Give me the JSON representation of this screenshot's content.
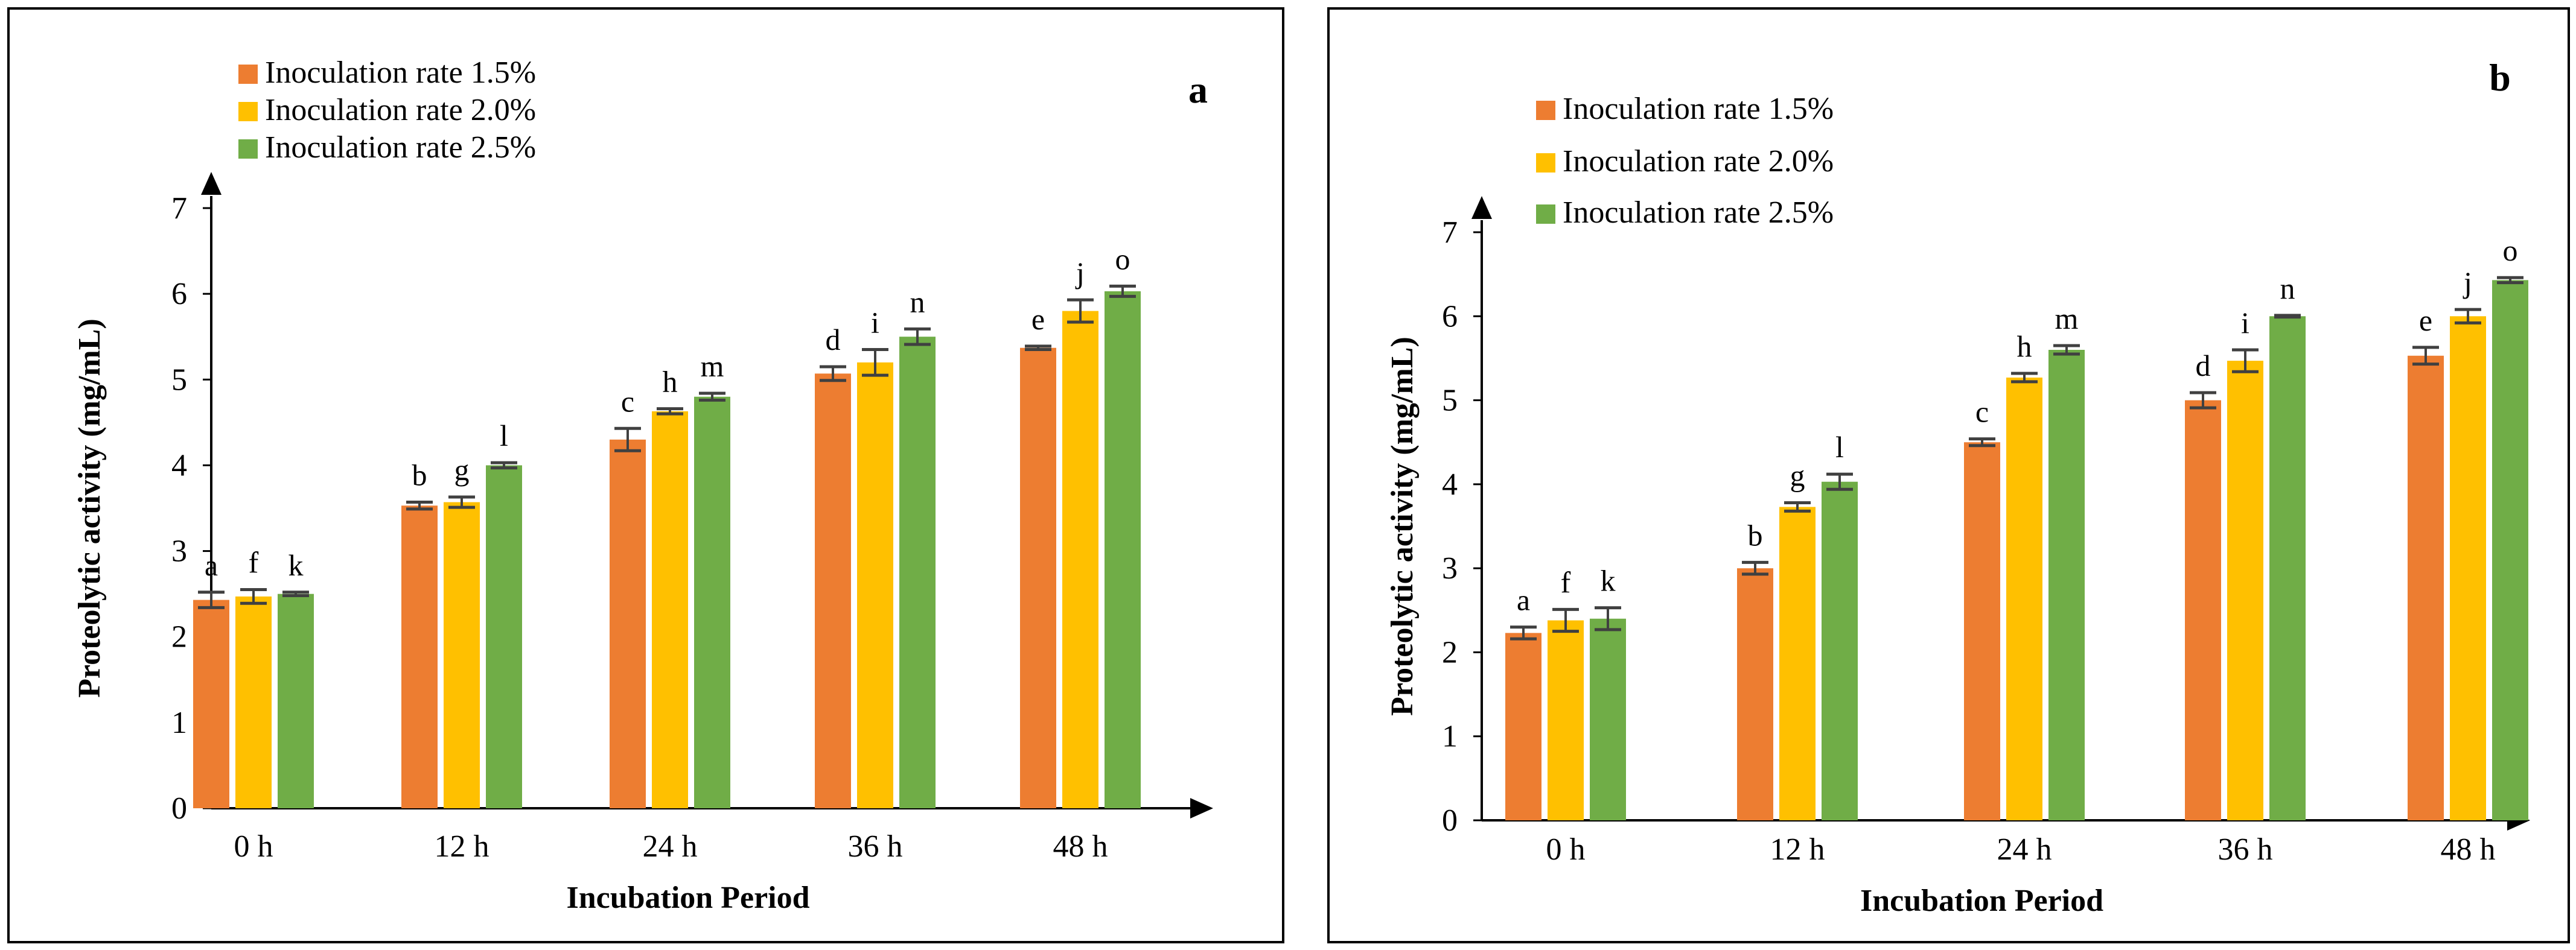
{
  "colors": {
    "series": [
      "#ED7D31",
      "#FFC000",
      "#70AD47"
    ],
    "errorbar": "#404040",
    "axis": "#000000",
    "border": "#000000"
  },
  "chart_data": [
    {
      "type": "bar",
      "panel_label": "a",
      "title": "",
      "xlabel": "Incubation Period",
      "ylabel": "Proteolytic activity (mg/mL)",
      "ylim": [
        0,
        7
      ],
      "yticks": [
        "0",
        "1",
        "2",
        "3",
        "4",
        "5",
        "6",
        "7"
      ],
      "grid": false,
      "legend_position": "top-left",
      "categories": [
        "0 h",
        "12 h",
        "24 h",
        "36 h",
        "48 h"
      ],
      "series": [
        {
          "name": "Inoculation rate 1.5%",
          "values": [
            2.43,
            3.53,
            4.3,
            5.07,
            5.37
          ],
          "errors": [
            0.09,
            0.04,
            0.13,
            0.08,
            0.02
          ],
          "letters": [
            "a",
            "b",
            "c",
            "d",
            "e"
          ]
        },
        {
          "name": "Inoculation rate 2.0%",
          "values": [
            2.47,
            3.57,
            4.63,
            5.2,
            5.8
          ],
          "errors": [
            0.08,
            0.06,
            0.03,
            0.15,
            0.13
          ],
          "letters": [
            "f",
            "g",
            "h",
            "i",
            "j"
          ]
        },
        {
          "name": "Inoculation rate 2.5%",
          "values": [
            2.5,
            4.0,
            4.8,
            5.5,
            6.03
          ],
          "errors": [
            0.02,
            0.03,
            0.04,
            0.09,
            0.06
          ],
          "letters": [
            "k",
            "l",
            "m",
            "n",
            "o"
          ]
        }
      ]
    },
    {
      "type": "bar",
      "panel_label": "b",
      "title": "",
      "xlabel": "Incubation Period",
      "ylabel": "Proteolytic activity (mg/mL)",
      "ylim": [
        0,
        7
      ],
      "yticks": [
        "0",
        "1",
        "2",
        "3",
        "4",
        "5",
        "6",
        "7"
      ],
      "grid": false,
      "legend_position": "top-left",
      "categories": [
        "0 h",
        "12 h",
        "24 h",
        "36 h",
        "48 h"
      ],
      "series": [
        {
          "name": "Inoculation rate 1.5%",
          "values": [
            2.23,
            3.0,
            4.5,
            5.0,
            5.53
          ],
          "errors": [
            0.07,
            0.07,
            0.04,
            0.09,
            0.1
          ],
          "letters": [
            "a",
            "b",
            "c",
            "d",
            "e"
          ]
        },
        {
          "name": "Inoculation rate 2.0%",
          "values": [
            2.38,
            3.73,
            5.27,
            5.47,
            6.0
          ],
          "errors": [
            0.13,
            0.05,
            0.05,
            0.13,
            0.08
          ],
          "letters": [
            "f",
            "g",
            "h",
            "i",
            "j"
          ]
        },
        {
          "name": "Inoculation rate 2.5%",
          "values": [
            2.4,
            4.03,
            5.6,
            6.0,
            6.43
          ],
          "errors": [
            0.13,
            0.09,
            0.05,
            0.01,
            0.03
          ],
          "letters": [
            "k",
            "l",
            "m",
            "n",
            "o"
          ]
        }
      ]
    }
  ]
}
